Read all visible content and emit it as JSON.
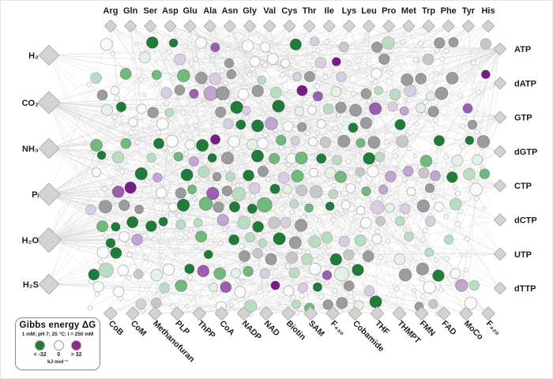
{
  "legend": {
    "title": "Gibbs energy ΔG",
    "conditions": "1 mM; pH 7; 25 °C; I = 250 mM",
    "items": [
      {
        "label": "< -32",
        "color": "#237a3c"
      },
      {
        "label": "0",
        "color": "#fbfbfb"
      },
      {
        "label": "> 32",
        "color": "#8d2a90"
      }
    ],
    "units": "kJ·mol⁻¹"
  },
  "network": {
    "seed": 42,
    "top": {
      "group": "amino-acids",
      "labels": [
        "Arg",
        "Gln",
        "Ser",
        "Asp",
        "Glu",
        "Ala",
        "Asn",
        "Gly",
        "Val",
        "Cys",
        "Thr",
        "Ile",
        "Lys",
        "Leu",
        "Pro",
        "Met",
        "Trp",
        "Phe",
        "Tyr",
        "His"
      ],
      "fan_edges": [
        12,
        14,
        16,
        22,
        26,
        20,
        14,
        18,
        10,
        12,
        10,
        8,
        12,
        12,
        10,
        12,
        9,
        9,
        11,
        8
      ]
    },
    "left": {
      "group": "substrates",
      "labels": [
        "H₂",
        "CO₂",
        "NH₃",
        "Pᵢ",
        "H₂O",
        "H₂S"
      ],
      "fan_edges": [
        12,
        42,
        26,
        46,
        56,
        14
      ]
    },
    "right": {
      "group": "nucleotides",
      "labels": [
        "ATP",
        "dATP",
        "GTP",
        "dGTP",
        "CTP",
        "dCTP",
        "UTP",
        "dTTP"
      ],
      "fan_edges": [
        46,
        8,
        18,
        6,
        12,
        5,
        10,
        6
      ]
    },
    "bottom": {
      "group": "cofactors",
      "labels": [
        "CoB",
        "CoM",
        "Methanofuran",
        "PLP",
        "ThPP",
        "CoA",
        "NADP",
        "NAD",
        "Biotin",
        "SAM",
        "F₄₃₀",
        "Cobamide",
        "THF",
        "THMPT",
        "FMN",
        "FAD",
        "MoCo",
        "F₄₂₀"
      ],
      "fan_edges": [
        8,
        8,
        12,
        10,
        10,
        14,
        12,
        12,
        8,
        10,
        7,
        14,
        12,
        10,
        8,
        8,
        6,
        8
      ]
    },
    "palette": [
      {
        "name": "darkGreen",
        "color": "#1f7c3a",
        "weight": 0.16
      },
      {
        "name": "green",
        "color": "#72b97e",
        "weight": 0.1
      },
      {
        "name": "paleGreen",
        "color": "#b9ddc0",
        "weight": 0.11
      },
      {
        "name": "mint",
        "color": "#e4f1e6",
        "weight": 0.09
      },
      {
        "name": "white",
        "color": "#fbfbfb",
        "weight": 0.21
      },
      {
        "name": "gray",
        "color": "#9c9c9c",
        "weight": 0.12
      },
      {
        "name": "lightGray",
        "color": "#c7c7c7",
        "weight": 0.04
      },
      {
        "name": "paleLilac",
        "color": "#d9cce3",
        "weight": 0.07
      },
      {
        "name": "lilac",
        "color": "#c2a6d2",
        "weight": 0.05
      },
      {
        "name": "purple",
        "color": "#9a5fae",
        "weight": 0.03
      },
      {
        "name": "darkPurple",
        "color": "#771c85",
        "weight": 0.02
      }
    ],
    "edge_color": "#d6d6d6",
    "diamond_fill": "#d3d3d3",
    "diamond_stroke": "#aeaeae"
  }
}
